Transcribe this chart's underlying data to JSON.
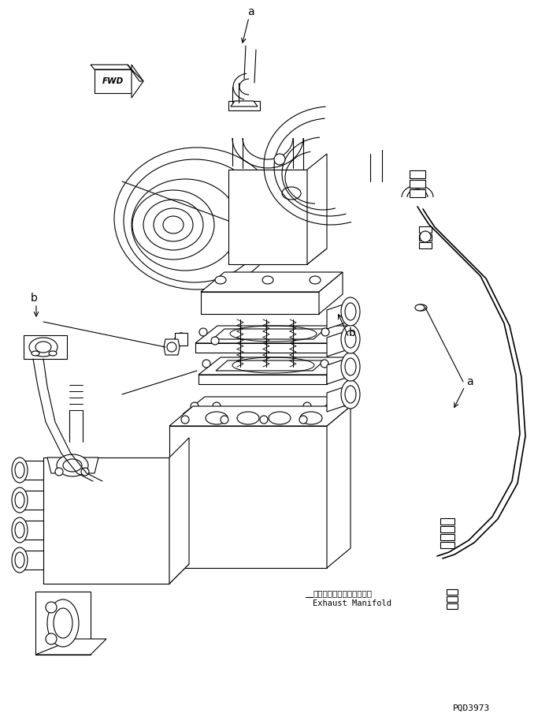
{
  "background_color": "#ffffff",
  "line_color": "#000000",
  "lw": 0.8,
  "label_a_top": "a",
  "label_a_right": "a",
  "label_b_left": "b",
  "label_b_mid": "b",
  "fwd_label": "FWD",
  "exhaust_jp": "エキゾーストマニホールド",
  "exhaust_en": "Exhaust Manifold",
  "code": "PQD3973",
  "fig_width": 6.97,
  "fig_height": 9.09,
  "dpi": 100
}
